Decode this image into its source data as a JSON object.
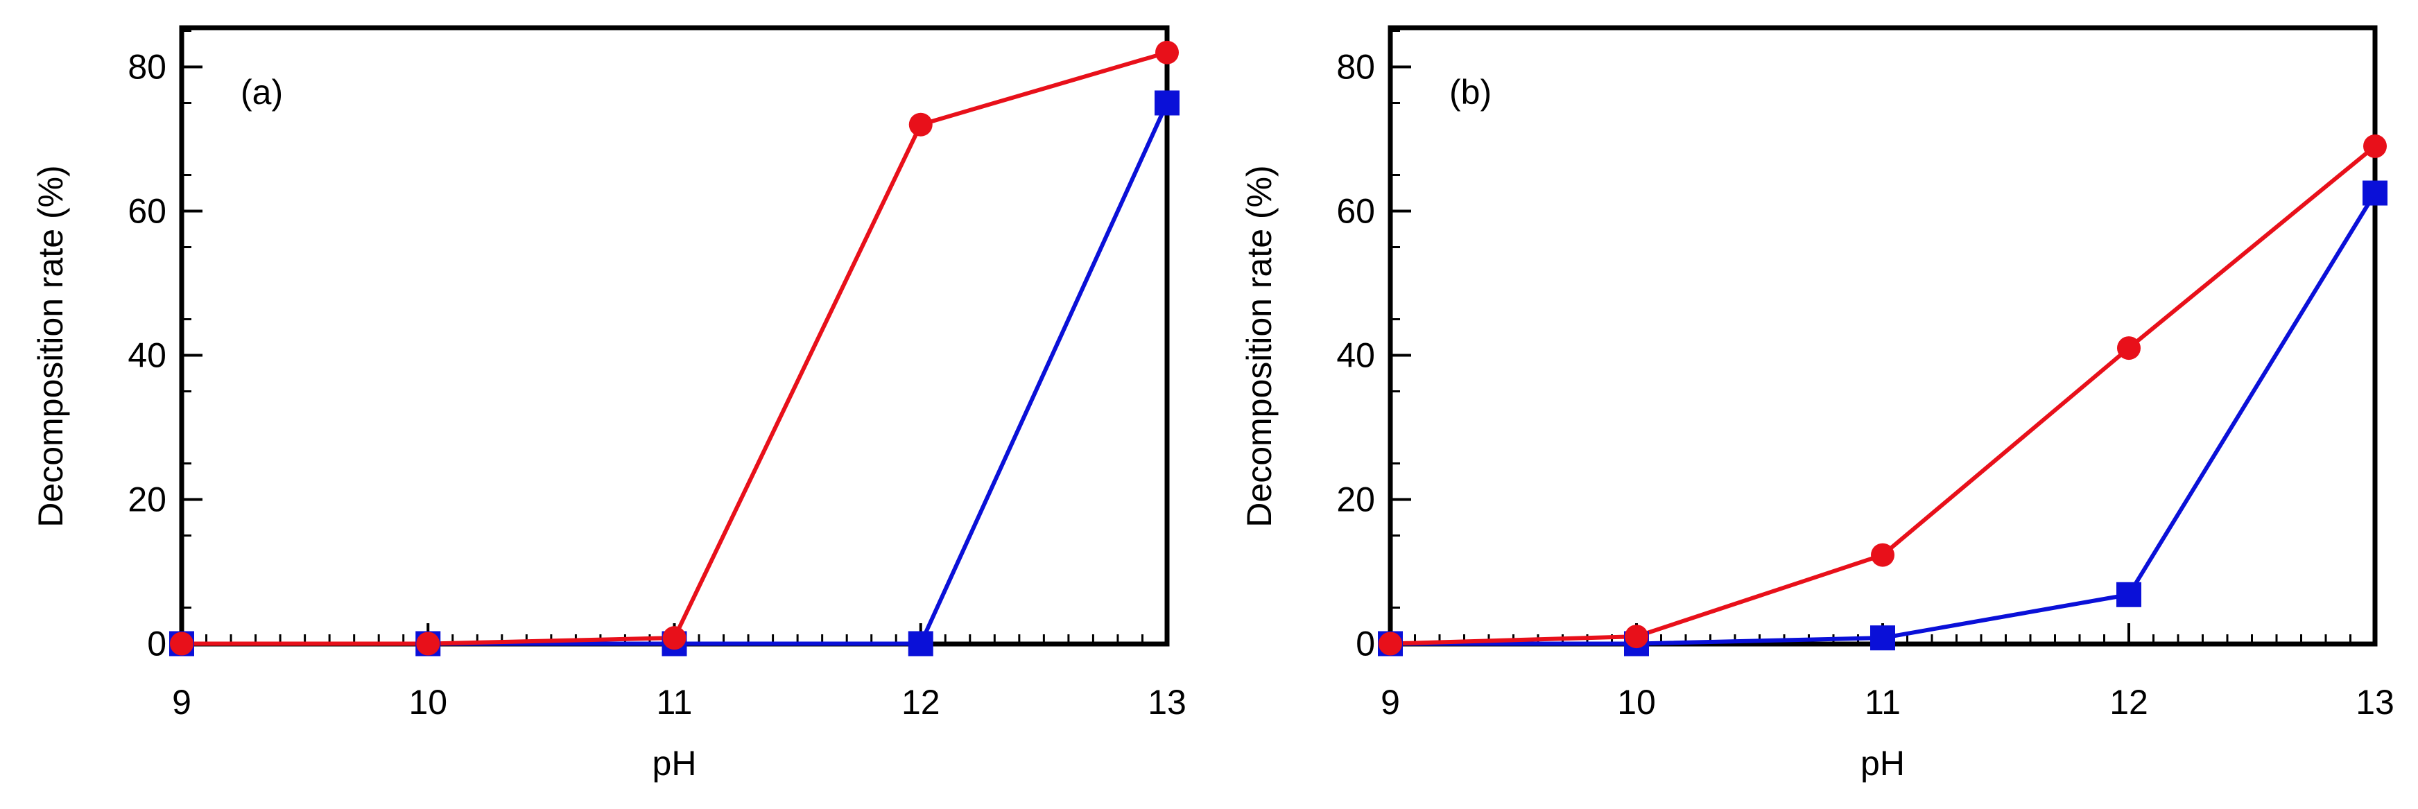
{
  "chart_data": [
    {
      "type": "line",
      "panel_label": "(a)",
      "xlabel": "pH",
      "ylabel": "Decomposition rate (%)",
      "xlim": [
        9,
        13
      ],
      "ylim": [
        0,
        85
      ],
      "x_ticks": [
        "9",
        "10",
        "11",
        "12",
        "13"
      ],
      "y_ticks": [
        "0",
        "20",
        "40",
        "60",
        "80"
      ],
      "grid": false,
      "series": [
        {
          "marker": "circle",
          "color": "#e8101a",
          "x": [
            9,
            10,
            11,
            12,
            13
          ],
          "y": [
            0,
            0,
            0.8,
            72,
            82
          ]
        },
        {
          "marker": "square",
          "color": "#0a10d8",
          "x": [
            9,
            10,
            11,
            12,
            13
          ],
          "y": [
            0,
            0,
            0,
            0,
            75
          ]
        }
      ]
    },
    {
      "type": "line",
      "panel_label": "(b)",
      "xlabel": "pH",
      "ylabel": "Decomposition rate (%)",
      "xlim": [
        9,
        13
      ],
      "ylim": [
        0,
        85
      ],
      "x_ticks": [
        "9",
        "10",
        "11",
        "12",
        "13"
      ],
      "y_ticks": [
        "0",
        "20",
        "40",
        "60",
        "80"
      ],
      "grid": false,
      "series": [
        {
          "marker": "circle",
          "color": "#e8101a",
          "x": [
            9,
            10,
            11,
            12,
            13
          ],
          "y": [
            0,
            1,
            12.3,
            41,
            69
          ]
        },
        {
          "marker": "square",
          "color": "#0a10d8",
          "x": [
            9,
            10,
            11,
            12,
            13
          ],
          "y": [
            0,
            0,
            0.8,
            6.8,
            62.5
          ]
        }
      ]
    }
  ]
}
